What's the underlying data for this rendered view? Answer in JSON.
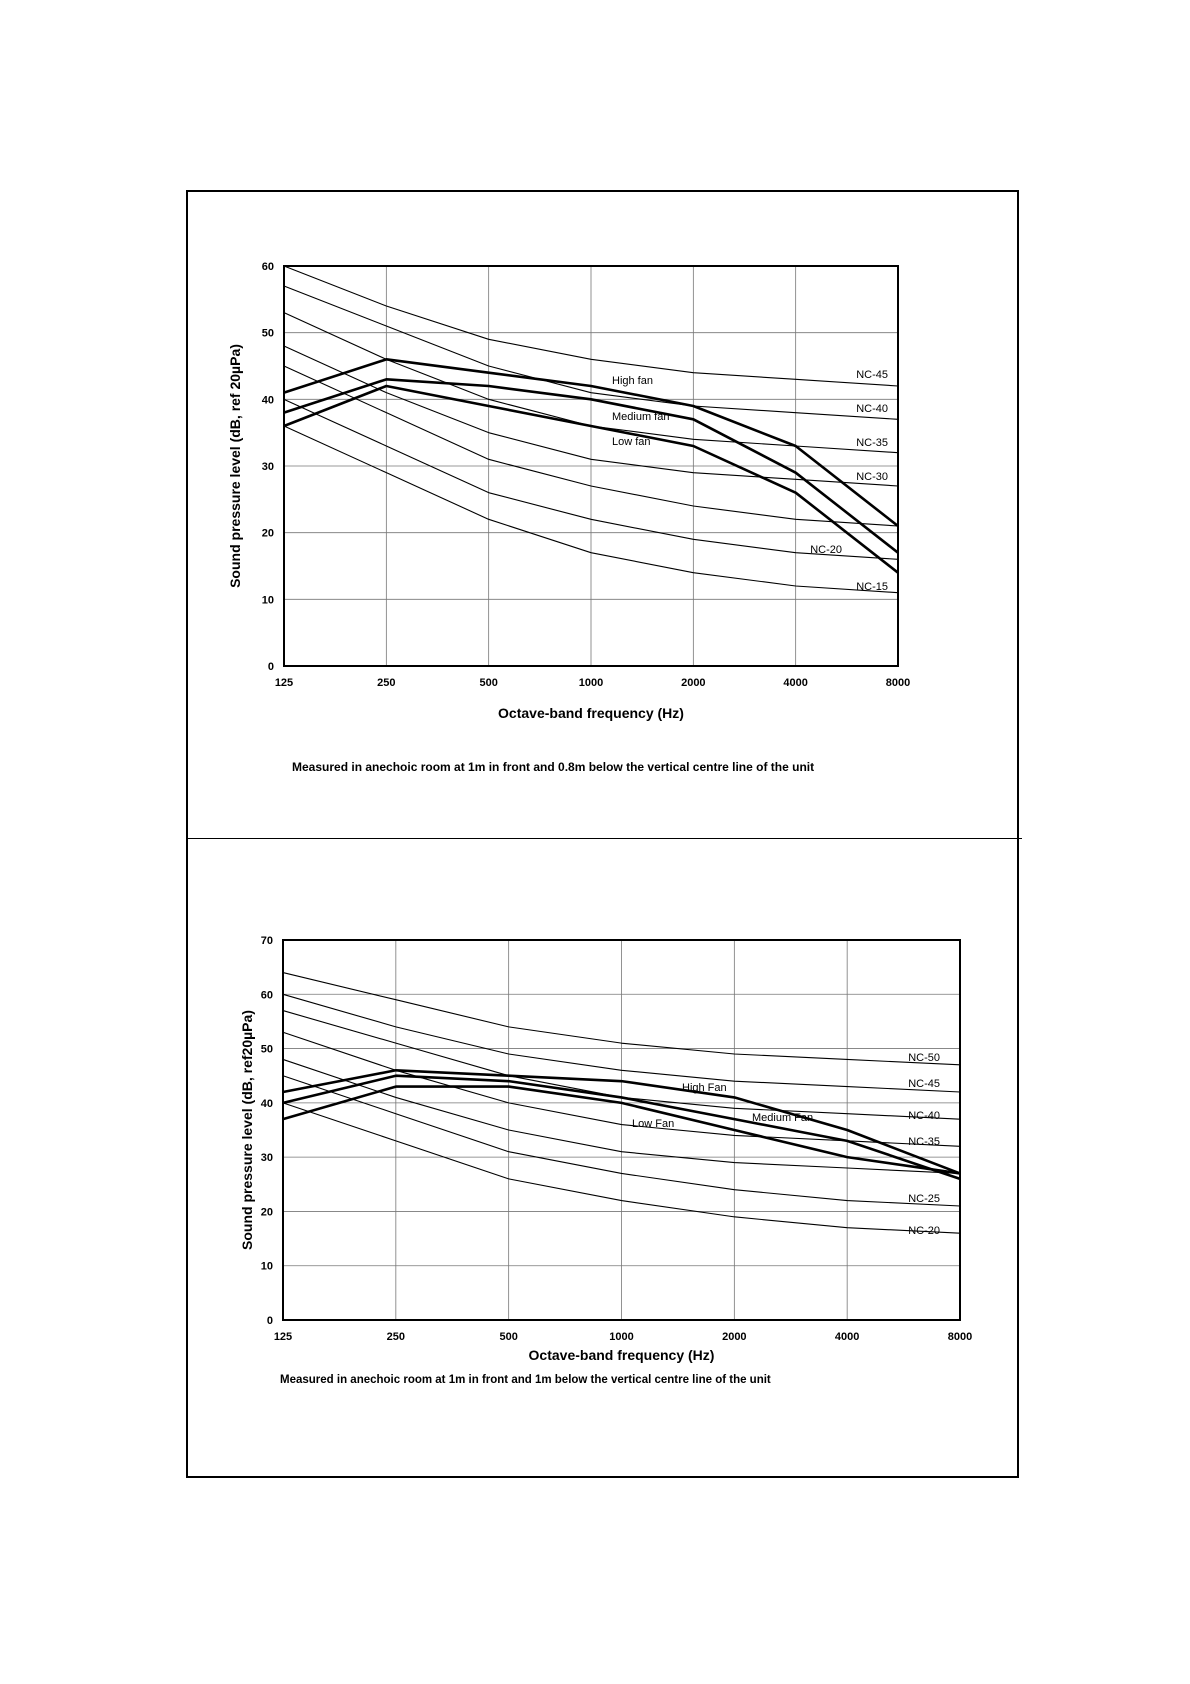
{
  "chart_data": [
    {
      "type": "line",
      "xlabel": "Octave-band frequency (Hz)",
      "ylabel": "Sound pressure level (dB, ref 20µPa)",
      "categories": [
        "125",
        "250",
        "500",
        "1000",
        "2000",
        "4000",
        "8000"
      ],
      "ylim": [
        0,
        60
      ],
      "yticks": [
        "0",
        "10",
        "20",
        "30",
        "40",
        "50",
        "60"
      ],
      "grid": true,
      "note": "Measured in anechoic room at 1m in front and 0.8m below the vertical centre line of the unit",
      "series": [
        {
          "name": "NC-45",
          "kind": "nc",
          "values": [
            60,
            54,
            49,
            46,
            44,
            43,
            42
          ]
        },
        {
          "name": "NC-40",
          "kind": "nc",
          "values": [
            57,
            51,
            45,
            41,
            39,
            38,
            37
          ]
        },
        {
          "name": "NC-35",
          "kind": "nc",
          "values": [
            53,
            46,
            40,
            36,
            34,
            33,
            32
          ]
        },
        {
          "name": "NC-30",
          "kind": "nc",
          "values": [
            48,
            41,
            35,
            31,
            29,
            28,
            27
          ]
        },
        {
          "name": "",
          "kind": "nc",
          "values": [
            45,
            38,
            31,
            27,
            24,
            22,
            21
          ]
        },
        {
          "name": "NC-20",
          "kind": "nc",
          "values": [
            40,
            33,
            26,
            22,
            19,
            17,
            16
          ]
        },
        {
          "name": "NC-15",
          "kind": "nc",
          "values": [
            36,
            29,
            22,
            17,
            14,
            12,
            11
          ]
        },
        {
          "name": "High fan",
          "kind": "fan",
          "values": [
            41,
            46,
            44,
            42,
            39,
            33,
            21
          ]
        },
        {
          "name": "Medium fan",
          "kind": "fan",
          "values": [
            38,
            43,
            42,
            40,
            37,
            29,
            17
          ]
        },
        {
          "name": "Low fan",
          "kind": "fan",
          "values": [
            36,
            42,
            39,
            36,
            33,
            26,
            14
          ]
        }
      ]
    },
    {
      "type": "line",
      "xlabel": "Octave-band frequency (Hz)",
      "ylabel": "Sound pressure level (dB, ref20µPa)",
      "categories": [
        "125",
        "250",
        "500",
        "1000",
        "2000",
        "4000",
        "8000"
      ],
      "ylim": [
        0,
        70
      ],
      "yticks": [
        "0",
        "10",
        "20",
        "30",
        "40",
        "50",
        "60",
        "70"
      ],
      "grid": true,
      "note": "Measured in anechoic room at 1m in front and 1m below the vertical centre line of the unit",
      "series": [
        {
          "name": "NC-50",
          "kind": "nc",
          "values": [
            64,
            59,
            54,
            51,
            49,
            48,
            47
          ]
        },
        {
          "name": "NC-45",
          "kind": "nc",
          "values": [
            60,
            54,
            49,
            46,
            44,
            43,
            42
          ]
        },
        {
          "name": "NC-40",
          "kind": "nc",
          "values": [
            57,
            51,
            45,
            41,
            39,
            38,
            37
          ]
        },
        {
          "name": "NC-35",
          "kind": "nc",
          "values": [
            53,
            46,
            40,
            36,
            34,
            33,
            32
          ]
        },
        {
          "name": "",
          "kind": "nc",
          "values": [
            48,
            41,
            35,
            31,
            29,
            28,
            27
          ]
        },
        {
          "name": "NC-25",
          "kind": "nc",
          "values": [
            45,
            38,
            31,
            27,
            24,
            22,
            21
          ]
        },
        {
          "name": "NC-20",
          "kind": "nc",
          "values": [
            40,
            33,
            26,
            22,
            19,
            17,
            16
          ]
        },
        {
          "name": "High Fan",
          "kind": "fan",
          "values": [
            42,
            46,
            45,
            44,
            41,
            35,
            27
          ]
        },
        {
          "name": "Medium Fan",
          "kind": "fan",
          "values": [
            40,
            45,
            44,
            41,
            37,
            33,
            26
          ]
        },
        {
          "name": "Low Fan",
          "kind": "fan",
          "values": [
            37,
            43,
            43,
            40,
            35,
            30,
            27
          ]
        }
      ]
    }
  ]
}
